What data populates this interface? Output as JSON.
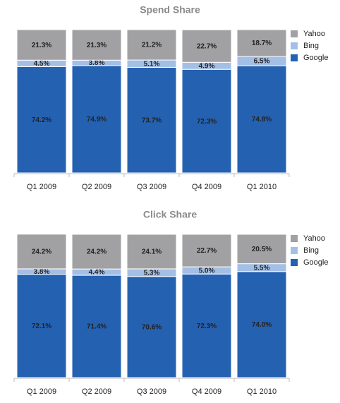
{
  "chart_data": [
    {
      "type": "stacked-bar",
      "title": "Spend Share",
      "categories": [
        "Q1 2009",
        "Q2 2009",
        "Q3 2009",
        "Q4 2009",
        "Q1 2010"
      ],
      "ylim": [
        0,
        100
      ],
      "series": [
        {
          "name": "Google",
          "color": "#2561b1",
          "values": [
            74.2,
            74.9,
            73.7,
            72.3,
            74.8
          ],
          "value_labels": [
            "74.2%",
            "74.9%",
            "73.7%",
            "72.3%",
            "74.8%"
          ]
        },
        {
          "name": "Bing",
          "color": "#a4bfe6",
          "values": [
            4.5,
            3.8,
            5.1,
            4.9,
            6.5
          ],
          "value_labels": [
            "4.5%",
            "3.8%",
            "5.1%",
            "4.9%",
            "6.5%"
          ]
        },
        {
          "name": "Yahoo",
          "color": "#a1a1a3",
          "values": [
            21.3,
            21.3,
            21.2,
            22.7,
            18.7
          ],
          "value_labels": [
            "21.3%",
            "21.3%",
            "21.2%",
            "22.7%",
            "18.7%"
          ]
        }
      ]
    },
    {
      "type": "stacked-bar",
      "title": "Click Share",
      "categories": [
        "Q1 2009",
        "Q2 2009",
        "Q3 2009",
        "Q4 2009",
        "Q1 2010"
      ],
      "ylim": [
        0,
        100
      ],
      "series": [
        {
          "name": "Google",
          "color": "#2561b1",
          "values": [
            72.1,
            71.4,
            70.6,
            72.3,
            74.0
          ],
          "value_labels": [
            "72.1%",
            "71.4%",
            "70.6%",
            "72.3%",
            "74.0%"
          ]
        },
        {
          "name": "Bing",
          "color": "#a4bfe6",
          "values": [
            3.8,
            4.4,
            5.3,
            5.0,
            5.5
          ],
          "value_labels": [
            "3.8%",
            "4.4%",
            "5.3%",
            "5.0%",
            "5.5%"
          ]
        },
        {
          "name": "Yahoo",
          "color": "#a1a1a3",
          "values": [
            24.2,
            24.2,
            24.1,
            22.7,
            20.5
          ],
          "value_labels": [
            "24.2%",
            "24.2%",
            "24.1%",
            "22.7%",
            "20.5%"
          ]
        }
      ]
    }
  ]
}
